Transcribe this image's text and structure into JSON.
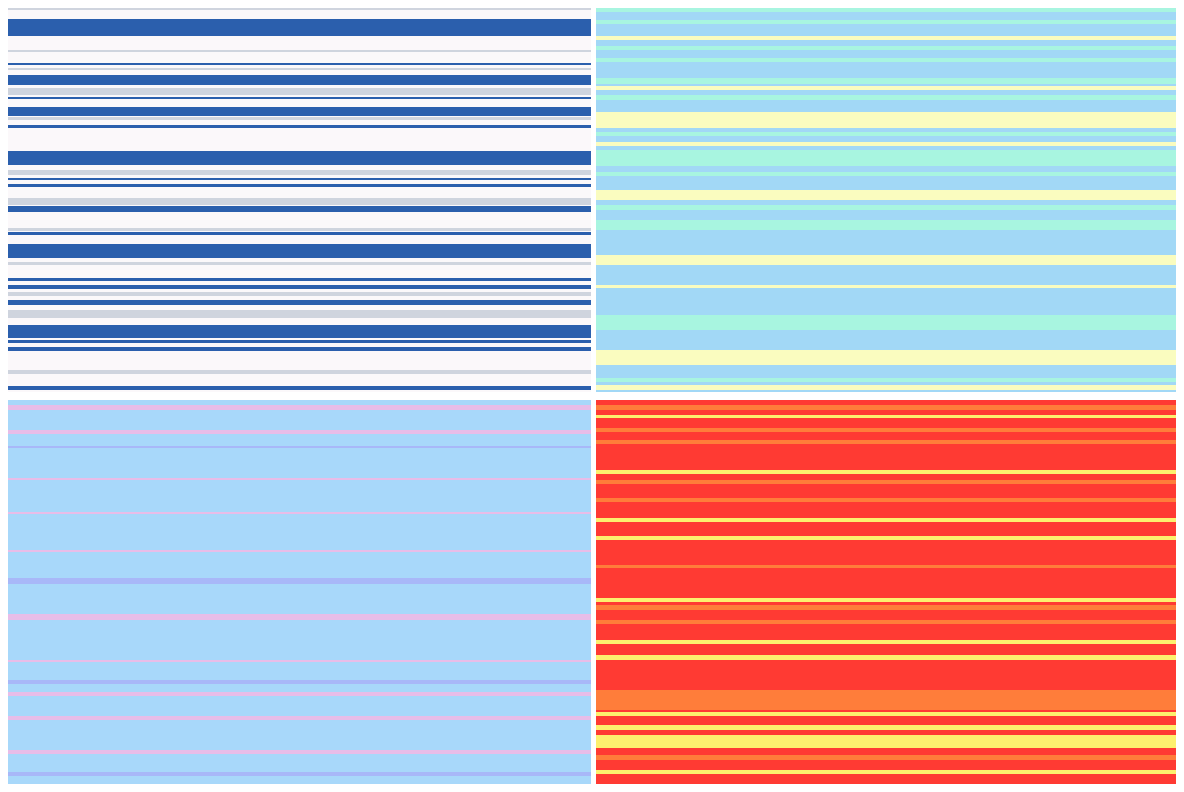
{
  "panels": [
    {
      "background": "#fbf8fa",
      "stripe_colors": [
        "#2b5fad",
        "#cfd4de"
      ]
    },
    {
      "background": "#a2d8f6",
      "stripe_colors": [
        "#a8f5e0",
        "#fafcbf"
      ]
    },
    {
      "background": "#a8d8fa",
      "stripe_colors": [
        "#e8bde8",
        "#a8b8f8"
      ]
    },
    {
      "background": "#ff3a33",
      "stripe_colors": [
        "#fdf06e",
        "#ff7d3a"
      ]
    }
  ]
}
